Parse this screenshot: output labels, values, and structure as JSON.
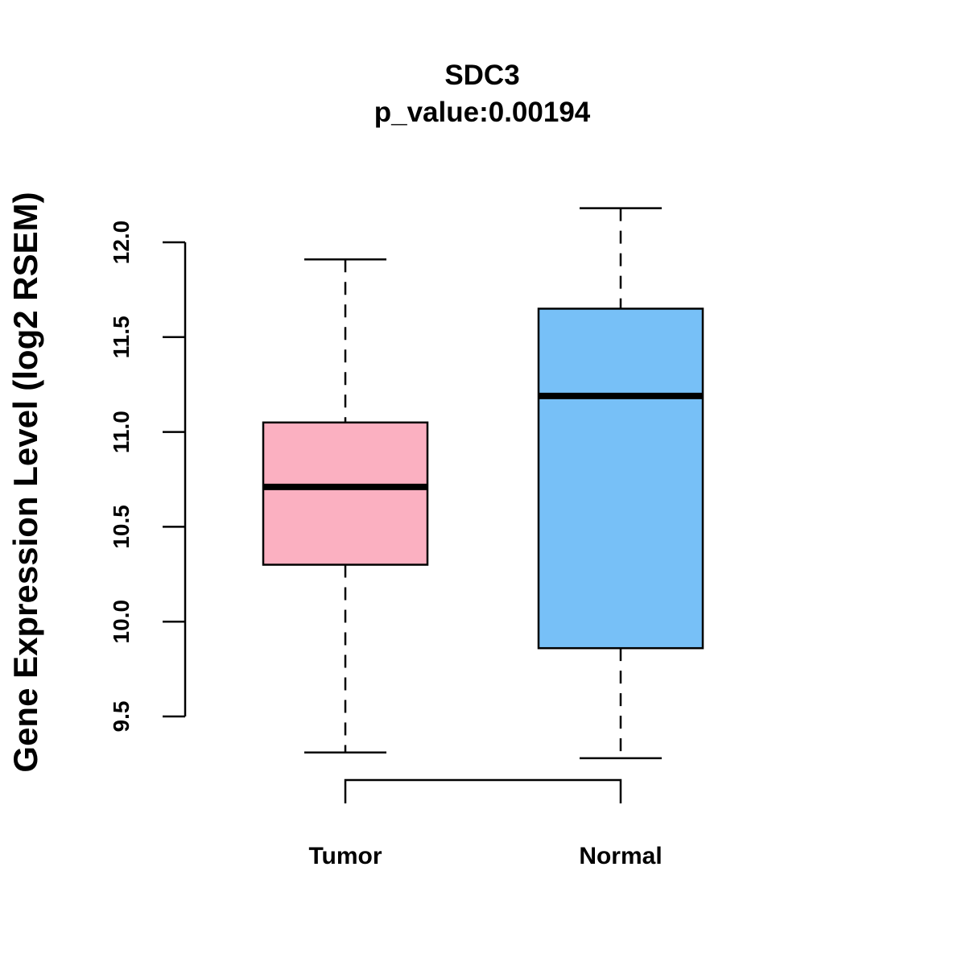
{
  "chart_data": {
    "type": "boxplot",
    "title": "SDC3",
    "subtitle": "p_value:0.00194",
    "xlabel": "",
    "ylabel": "Gene Expression Level (log2 RSEM)",
    "ylim": [
      9.5,
      12.0
    ],
    "y_ticks": [
      9.5,
      10.0,
      10.5,
      11.0,
      11.5,
      12.0
    ],
    "y_tick_labels": [
      "9.5",
      "10.0",
      "10.5",
      "11.0",
      "11.5",
      "12.0"
    ],
    "categories": [
      "Tumor",
      "Normal"
    ],
    "comparison_bracket": [
      "Tumor",
      "Normal"
    ],
    "grid": false,
    "series": [
      {
        "name": "Tumor",
        "color": "#FBB0C1",
        "min": 9.31,
        "q1": 10.3,
        "median": 10.71,
        "q3": 11.05,
        "max": 11.91
      },
      {
        "name": "Normal",
        "color": "#77C0F7",
        "min": 9.28,
        "q1": 9.86,
        "median": 11.19,
        "q3": 11.65,
        "max": 12.18
      }
    ]
  }
}
